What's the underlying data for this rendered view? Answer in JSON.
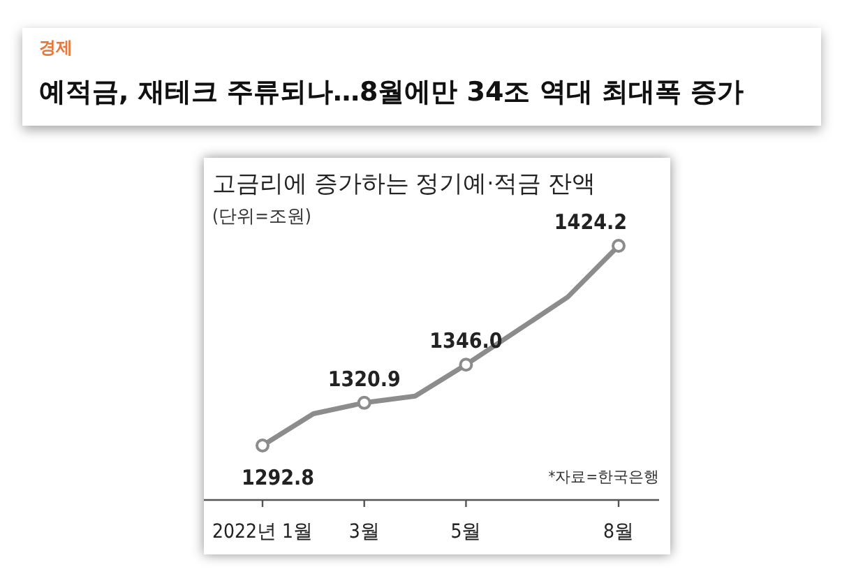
{
  "chart_data": {
    "type": "line",
    "title": "예적금, 재테크 주류되나…8월에만 34조 역대 최대폭 증가",
    "subtitle": "고금리에 증가하는 정기예·적금 잔액",
    "annotations": [
      "경제",
      "(단위=조원)",
      "*자료=한국은행"
    ],
    "categories": [
      "2022년 1월",
      null,
      "3월",
      null,
      "5월",
      null,
      null,
      "8월"
    ],
    "series": [
      {
        "color": "#8c8c8c",
        "values": [
          1292.8,
          1313.7,
          1320.9,
          1325.3,
          1346.0,
          1368.2,
          1390.5,
          1424.2
        ],
        "value_labels": [
          "1292.8",
          null,
          "1320.9",
          null,
          "1346.0",
          null,
          null,
          "1424.2"
        ]
      }
    ],
    "marker": "circle"
  }
}
